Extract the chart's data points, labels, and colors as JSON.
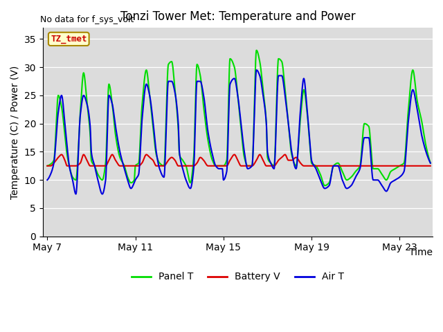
{
  "title": "Tonzi Tower Met: Temperature and Power",
  "no_data_label": "No data for f_sys_volt",
  "tag_label": "TZ_tmet",
  "xlabel": "Time",
  "ylabel": "Temperature (C) / Power (V)",
  "ylim": [
    0,
    37
  ],
  "yticks": [
    0,
    5,
    10,
    15,
    20,
    25,
    30,
    35
  ],
  "x_tick_labels": [
    "May 7",
    "May 11",
    "May 15",
    "May 19",
    "May 23"
  ],
  "x_tick_positions": [
    0,
    4,
    8,
    12,
    16
  ],
  "bg_color": "#dcdcdc",
  "panel_color": "#00dd00",
  "battery_color": "#dd0000",
  "air_color": "#0000dd",
  "title_fontsize": 12,
  "label_fontsize": 10,
  "note_fontsize": 9,
  "tag_fontsize": 9
}
